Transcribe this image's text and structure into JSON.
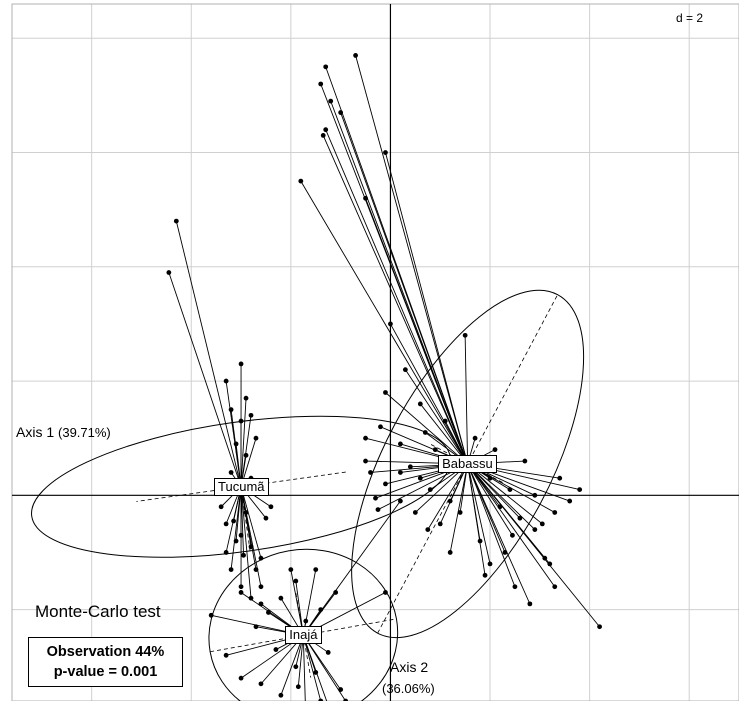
{
  "chart_data": {
    "type": "scatter",
    "subtype": "between-class analysis (s.class plot with star links and inertia ellipses)",
    "axis1_label": "Axis 1",
    "axis1_pct": "(39.71%)",
    "axis2_label": "Axis 2",
    "axis2_pct": "(36.06%)",
    "grid_scale_label": "d = 2",
    "grid": true,
    "xlim": [
      -7.6,
      7.0
    ],
    "ylim": [
      -3.6,
      8.6
    ],
    "groups": [
      {
        "name": "Tucumã",
        "center": [
          -3.0,
          0.15
        ],
        "ellipse": {
          "rx": 1.3,
          "ry": 3.7,
          "angle_deg": 82
        },
        "points": [
          [
            -4.3,
            4.8
          ],
          [
            -4.45,
            3.9
          ],
          [
            -3.0,
            2.3
          ],
          [
            -2.9,
            1.7
          ],
          [
            -3.3,
            2.0
          ],
          [
            -3.2,
            1.5
          ],
          [
            -3.0,
            1.3
          ],
          [
            -2.8,
            1.4
          ],
          [
            -2.7,
            1.0
          ],
          [
            -3.1,
            0.9
          ],
          [
            -2.9,
            0.7
          ],
          [
            -3.2,
            0.4
          ],
          [
            -2.8,
            0.3
          ],
          [
            -2.5,
            0.1
          ],
          [
            -2.4,
            -0.2
          ],
          [
            -3.3,
            -0.5
          ],
          [
            -3.1,
            -0.8
          ],
          [
            -3.3,
            -1.0
          ],
          [
            -3.0,
            -0.7
          ],
          [
            -2.8,
            -0.9
          ],
          [
            -2.6,
            -1.1
          ],
          [
            -2.7,
            -1.3
          ],
          [
            -3.2,
            -1.3
          ],
          [
            -3.0,
            -1.6
          ],
          [
            -2.6,
            -1.6
          ],
          [
            -2.8,
            -1.8
          ],
          [
            -2.9,
            -0.3
          ],
          [
            -3.4,
            0.1
          ],
          [
            -3.4,
            -0.2
          ],
          [
            -3.15,
            -0.45
          ],
          [
            -2.95,
            -1.05
          ],
          [
            -2.5,
            -0.4
          ]
        ]
      },
      {
        "name": "Babassu",
        "center": [
          1.55,
          0.55
        ],
        "ellipse": {
          "rx": 3.85,
          "ry": 1.45,
          "angle_deg": -62
        },
        "points": [
          [
            -1.3,
            7.5
          ],
          [
            -1.4,
            7.2
          ],
          [
            -1.2,
            6.9
          ],
          [
            -1.3,
            6.4
          ],
          [
            -0.7,
            7.7
          ],
          [
            -1.0,
            6.7
          ],
          [
            -1.35,
            6.3
          ],
          [
            -1.8,
            5.5
          ],
          [
            -0.5,
            5.2
          ],
          [
            -0.1,
            6.0
          ],
          [
            0.0,
            3.0
          ],
          [
            0.3,
            2.2
          ],
          [
            -0.1,
            1.8
          ],
          [
            0.6,
            1.6
          ],
          [
            1.5,
            2.8
          ],
          [
            -0.2,
            1.2
          ],
          [
            -0.5,
            1.0
          ],
          [
            0.2,
            0.9
          ],
          [
            0.4,
            0.5
          ],
          [
            -0.4,
            0.4
          ],
          [
            -0.1,
            0.2
          ],
          [
            0.6,
            0.3
          ],
          [
            0.8,
            0.1
          ],
          [
            1.2,
            -0.1
          ],
          [
            -0.3,
            -0.05
          ],
          [
            0.5,
            -0.3
          ],
          [
            1.0,
            -0.5
          ],
          [
            1.4,
            -0.3
          ],
          [
            1.8,
            -0.8
          ],
          [
            2.2,
            -0.2
          ],
          [
            2.4,
            0.1
          ],
          [
            2.6,
            -0.4
          ],
          [
            2.3,
            -1.0
          ],
          [
            2.9,
            -0.6
          ],
          [
            3.1,
            -1.1
          ],
          [
            3.3,
            -0.3
          ],
          [
            3.6,
            -0.1
          ],
          [
            3.2,
            -1.2
          ],
          [
            2.0,
            -1.2
          ],
          [
            1.2,
            -1.0
          ],
          [
            1.9,
            -1.4
          ],
          [
            2.5,
            -1.6
          ],
          [
            2.8,
            -1.9
          ],
          [
            3.3,
            -1.6
          ],
          [
            4.2,
            -2.3
          ],
          [
            3.8,
            0.1
          ],
          [
            3.4,
            0.3
          ],
          [
            2.7,
            0.6
          ],
          [
            2.1,
            0.8
          ],
          [
            1.9,
            0.5
          ],
          [
            1.7,
            1.0
          ],
          [
            0.9,
            0.8
          ],
          [
            0.7,
            1.1
          ],
          [
            1.1,
            1.3
          ],
          [
            2.0,
            0.3
          ],
          [
            2.9,
            0.0
          ],
          [
            3.05,
            -0.5
          ],
          [
            2.45,
            -0.7
          ],
          [
            0.2,
            0.4
          ],
          [
            -0.5,
            0.6
          ],
          [
            -0.25,
            -0.25
          ],
          [
            0.75,
            -0.6
          ]
        ]
      },
      {
        "name": "Inajá",
        "center": [
          -1.75,
          -2.45
        ],
        "ellipse": {
          "rx": 1.9,
          "ry": 1.5,
          "angle_deg": -10
        },
        "points": [
          [
            -3.6,
            -2.1
          ],
          [
            -3.3,
            -2.8
          ],
          [
            -3.0,
            -3.2
          ],
          [
            -2.6,
            -3.3
          ],
          [
            -2.2,
            -3.5
          ],
          [
            -1.7,
            -3.9
          ],
          [
            -1.4,
            -3.6
          ],
          [
            -1.2,
            -3.8
          ],
          [
            -0.9,
            -3.6
          ],
          [
            -1.0,
            -3.4
          ],
          [
            -1.5,
            -3.1
          ],
          [
            -1.9,
            -3.0
          ],
          [
            -2.3,
            -2.7
          ],
          [
            -2.7,
            -2.3
          ],
          [
            -3.0,
            -1.7
          ],
          [
            -2.6,
            -1.9
          ],
          [
            -2.2,
            -1.8
          ],
          [
            -1.9,
            -1.5
          ],
          [
            -1.5,
            -1.3
          ],
          [
            -1.1,
            -1.7
          ],
          [
            -1.4,
            -2.0
          ],
          [
            -1.7,
            -2.2
          ],
          [
            -2.0,
            -1.3
          ],
          [
            -0.1,
            -1.7
          ],
          [
            0.2,
            -0.1
          ],
          [
            -2.45,
            -2.05
          ],
          [
            -1.85,
            -3.35
          ],
          [
            -1.25,
            -2.75
          ]
        ]
      }
    ],
    "annotations": {
      "test_title": "Monte-Carlo test",
      "observation": "Observation 44%",
      "p_value": "p-value = 0.001"
    }
  }
}
